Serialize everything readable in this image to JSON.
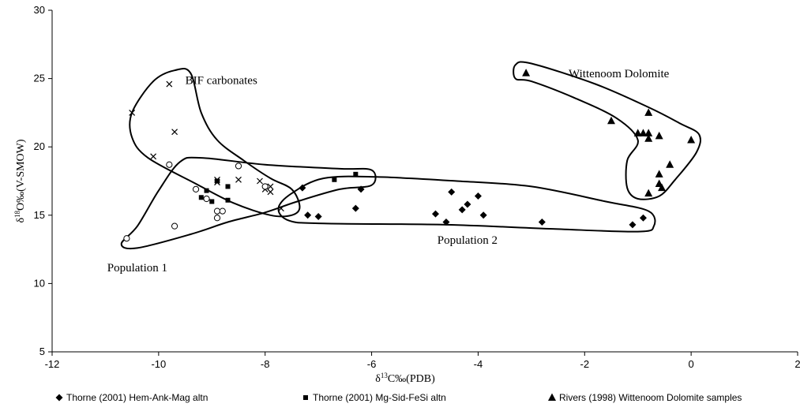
{
  "chart_data": {
    "type": "scatter",
    "xlabel": "δ13C‰(PDB)",
    "ylabel": "δ18O‰(V-SMOW)",
    "xlim": [
      -12,
      2
    ],
    "ylim": [
      5,
      30
    ],
    "x_ticks": [
      -12,
      -10,
      -8,
      -6,
      -4,
      -2,
      0,
      2
    ],
    "y_ticks": [
      5,
      10,
      15,
      20,
      25,
      30
    ],
    "grid": false,
    "legend_position": "bottom",
    "series": [
      {
        "name": "Thorne (2001) Hem-Ank-Mag altn",
        "marker": "diamond",
        "points": [
          [
            -7.3,
            17.0
          ],
          [
            -7.2,
            15.0
          ],
          [
            -7.0,
            14.9
          ],
          [
            -6.3,
            15.5
          ],
          [
            -6.2,
            16.9
          ],
          [
            -4.8,
            15.1
          ],
          [
            -4.6,
            14.5
          ],
          [
            -4.5,
            16.7
          ],
          [
            -4.3,
            15.4
          ],
          [
            -4.2,
            15.8
          ],
          [
            -4.0,
            16.4
          ],
          [
            -3.9,
            15.0
          ],
          [
            -2.8,
            14.5
          ],
          [
            -1.1,
            14.3
          ],
          [
            -0.9,
            14.8
          ]
        ]
      },
      {
        "name": "Thorne (2001) Mg-Sid-FeSi altn",
        "marker": "square",
        "points": [
          [
            -9.2,
            16.3
          ],
          [
            -9.1,
            16.8
          ],
          [
            -9.0,
            16.0
          ],
          [
            -8.9,
            17.5
          ],
          [
            -8.7,
            17.1
          ],
          [
            -8.7,
            16.1
          ],
          [
            -6.7,
            17.6
          ],
          [
            -6.3,
            18.0
          ]
        ]
      },
      {
        "name": "Rivers (1998) Wittenoom Dolomite samples",
        "marker": "triangle",
        "points": [
          [
            -3.1,
            25.4
          ],
          [
            -1.5,
            21.9
          ],
          [
            -1.0,
            21.0
          ],
          [
            -0.9,
            21.0
          ],
          [
            -0.8,
            22.5
          ],
          [
            -0.8,
            21.0
          ],
          [
            -0.8,
            20.6
          ],
          [
            -0.6,
            20.8
          ],
          [
            -0.6,
            18.0
          ],
          [
            -0.6,
            17.3
          ],
          [
            -0.55,
            17.0
          ],
          [
            -0.4,
            18.7
          ],
          [
            -0.8,
            16.6
          ],
          [
            0.0,
            20.5
          ]
        ]
      },
      {
        "marker": "x",
        "points": [
          [
            -10.5,
            22.5
          ],
          [
            -9.8,
            24.6
          ],
          [
            -9.7,
            21.1
          ],
          [
            -10.1,
            19.3
          ],
          [
            -8.9,
            17.6
          ],
          [
            -8.9,
            17.4
          ],
          [
            -8.5,
            17.6
          ],
          [
            -8.1,
            17.5
          ],
          [
            -8.0,
            16.9
          ],
          [
            -7.9,
            17.1
          ],
          [
            -7.9,
            16.7
          ],
          [
            -7.7,
            15.5
          ]
        ]
      },
      {
        "marker": "circle",
        "points": [
          [
            -10.6,
            13.3
          ],
          [
            -9.8,
            18.7
          ],
          [
            -9.7,
            14.2
          ],
          [
            -9.3,
            16.9
          ],
          [
            -9.1,
            16.2
          ],
          [
            -8.9,
            14.8
          ],
          [
            -8.9,
            15.3
          ],
          [
            -8.8,
            15.3
          ],
          [
            -8.5,
            18.6
          ],
          [
            -8.0,
            17.1
          ]
        ]
      }
    ],
    "regions": [
      {
        "label": "BIF carbonates",
        "outline": [
          [
            -10.5,
            22.5
          ],
          [
            -10.1,
            24.8
          ],
          [
            -9.7,
            25.6
          ],
          [
            -9.4,
            25.4
          ],
          [
            -9.2,
            22.5
          ],
          [
            -8.9,
            20.5
          ],
          [
            -8.4,
            19.0
          ],
          [
            -7.9,
            17.7
          ],
          [
            -7.5,
            16.9
          ],
          [
            -7.35,
            15.6
          ],
          [
            -7.5,
            15.0
          ],
          [
            -7.9,
            15.0
          ],
          [
            -8.6,
            15.9
          ],
          [
            -9.3,
            17.3
          ],
          [
            -10.2,
            19.2
          ],
          [
            -10.5,
            20.7
          ]
        ]
      },
      {
        "label": "Population 1",
        "outline": [
          [
            -10.7,
            12.9
          ],
          [
            -10.4,
            14.2
          ],
          [
            -10.0,
            16.8
          ],
          [
            -9.6,
            18.9
          ],
          [
            -9.2,
            19.2
          ],
          [
            -8.0,
            18.7
          ],
          [
            -6.6,
            18.4
          ],
          [
            -6.0,
            18.3
          ],
          [
            -6.0,
            17.2
          ],
          [
            -6.6,
            16.9
          ],
          [
            -7.4,
            16.0
          ],
          [
            -8.0,
            15.2
          ],
          [
            -8.7,
            14.5
          ],
          [
            -9.4,
            13.6
          ],
          [
            -10.4,
            12.6
          ]
        ]
      },
      {
        "label": "Population 2",
        "outline": [
          [
            -7.5,
            16.6
          ],
          [
            -6.9,
            17.7
          ],
          [
            -5.9,
            17.8
          ],
          [
            -4.4,
            17.5
          ],
          [
            -3.0,
            17.1
          ],
          [
            -1.6,
            16.0
          ],
          [
            -0.8,
            15.3
          ],
          [
            -0.7,
            14.2
          ],
          [
            -1.0,
            13.8
          ],
          [
            -2.6,
            14.0
          ],
          [
            -4.6,
            14.3
          ],
          [
            -6.9,
            14.4
          ],
          [
            -7.55,
            14.6
          ],
          [
            -7.75,
            15.5
          ]
        ]
      },
      {
        "label": "Wittenoom Dolomite",
        "outline": [
          [
            -3.3,
            25.0
          ],
          [
            -3.3,
            26.0
          ],
          [
            -3.0,
            26.1
          ],
          [
            -1.8,
            24.6
          ],
          [
            -0.8,
            22.9
          ],
          [
            -0.2,
            21.7
          ],
          [
            0.15,
            20.9
          ],
          [
            0.1,
            19.6
          ],
          [
            -0.3,
            17.6
          ],
          [
            -0.6,
            16.4
          ],
          [
            -1.0,
            16.2
          ],
          [
            -1.2,
            17.0
          ],
          [
            -1.2,
            19.0
          ],
          [
            -1.0,
            20.5
          ],
          [
            -1.4,
            22.1
          ],
          [
            -2.2,
            23.6
          ],
          [
            -3.0,
            24.8
          ]
        ]
      }
    ]
  }
}
